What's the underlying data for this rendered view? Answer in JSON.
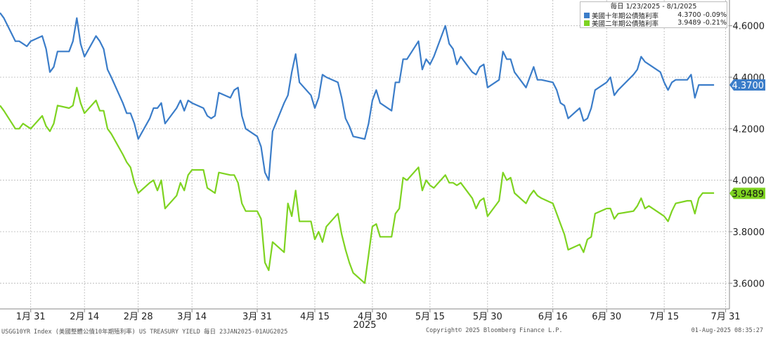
{
  "chart_data": {
    "type": "line",
    "title": "",
    "xlabel": "",
    "ylabel": "",
    "period_label": "毎日 1/23/2025 - 8/1/2025",
    "year_label": "2025",
    "ylim": [
      3.5,
      4.7
    ],
    "y_ticks": [
      3.6,
      3.8,
      4.0,
      4.2,
      4.4,
      4.6
    ],
    "y_tick_labels": [
      "3.6000",
      "3.8000",
      "4.0000",
      "4.2000",
      "4.4000",
      "4.6000"
    ],
    "xlim": [
      "2025-01-23",
      "2025-08-01"
    ],
    "x_ticks": [
      {
        "date": "2025-01-31",
        "label": "1月 31"
      },
      {
        "date": "2025-02-14",
        "label": "2月 14"
      },
      {
        "date": "2025-02-28",
        "label": "2月 28"
      },
      {
        "date": "2025-03-14",
        "label": "3月 14"
      },
      {
        "date": "2025-03-31",
        "label": "3月 31"
      },
      {
        "date": "2025-04-15",
        "label": "4月 15"
      },
      {
        "date": "2025-04-30",
        "label": "4月 30"
      },
      {
        "date": "2025-05-15",
        "label": "5月 15"
      },
      {
        "date": "2025-05-30",
        "label": "5月 30"
      },
      {
        "date": "2025-06-16",
        "label": "6月 16"
      },
      {
        "date": "2025-06-30",
        "label": "6月 30"
      },
      {
        "date": "2025-07-15",
        "label": "7月 15"
      },
      {
        "date": "2025-07-31",
        "label": "7月 31"
      }
    ],
    "grid": true,
    "legend": "top-right",
    "series": [
      {
        "name": "美國十年期公債殖利率",
        "color": "#3b7dc9",
        "last_value": "4.3700",
        "change": "-0.09%",
        "points": [
          [
            "2025-01-23",
            4.65
          ],
          [
            "2025-01-24",
            4.63
          ],
          [
            "2025-01-27",
            4.54
          ],
          [
            "2025-01-28",
            4.54
          ],
          [
            "2025-01-29",
            4.53
          ],
          [
            "2025-01-30",
            4.52
          ],
          [
            "2025-01-31",
            4.54
          ],
          [
            "2025-02-03",
            4.56
          ],
          [
            "2025-02-04",
            4.51
          ],
          [
            "2025-02-05",
            4.42
          ],
          [
            "2025-02-06",
            4.44
          ],
          [
            "2025-02-07",
            4.5
          ],
          [
            "2025-02-10",
            4.5
          ],
          [
            "2025-02-11",
            4.54
          ],
          [
            "2025-02-12",
            4.63
          ],
          [
            "2025-02-13",
            4.53
          ],
          [
            "2025-02-14",
            4.48
          ],
          [
            "2025-02-17",
            4.56
          ],
          [
            "2025-02-18",
            4.54
          ],
          [
            "2025-02-19",
            4.51
          ],
          [
            "2025-02-20",
            4.43
          ],
          [
            "2025-02-21",
            4.4
          ],
          [
            "2025-02-24",
            4.3
          ],
          [
            "2025-02-25",
            4.26
          ],
          [
            "2025-02-26",
            4.26
          ],
          [
            "2025-02-27",
            4.22
          ],
          [
            "2025-02-28",
            4.16
          ],
          [
            "2025-03-03",
            4.24
          ],
          [
            "2025-03-04",
            4.28
          ],
          [
            "2025-03-05",
            4.28
          ],
          [
            "2025-03-06",
            4.3
          ],
          [
            "2025-03-07",
            4.22
          ],
          [
            "2025-03-10",
            4.28
          ],
          [
            "2025-03-11",
            4.31
          ],
          [
            "2025-03-12",
            4.27
          ],
          [
            "2025-03-13",
            4.31
          ],
          [
            "2025-03-14",
            4.3
          ],
          [
            "2025-03-17",
            4.28
          ],
          [
            "2025-03-18",
            4.25
          ],
          [
            "2025-03-19",
            4.24
          ],
          [
            "2025-03-20",
            4.25
          ],
          [
            "2025-03-21",
            4.34
          ],
          [
            "2025-03-24",
            4.32
          ],
          [
            "2025-03-25",
            4.35
          ],
          [
            "2025-03-26",
            4.36
          ],
          [
            "2025-03-27",
            4.25
          ],
          [
            "2025-03-28",
            4.2
          ],
          [
            "2025-03-31",
            4.17
          ],
          [
            "2025-04-01",
            4.13
          ],
          [
            "2025-04-02",
            4.03
          ],
          [
            "2025-04-03",
            4.0
          ],
          [
            "2025-04-04",
            4.19
          ],
          [
            "2025-04-07",
            4.3
          ],
          [
            "2025-04-08",
            4.33
          ],
          [
            "2025-04-09",
            4.42
          ],
          [
            "2025-04-10",
            4.49
          ],
          [
            "2025-04-11",
            4.38
          ],
          [
            "2025-04-14",
            4.33
          ],
          [
            "2025-04-15",
            4.28
          ],
          [
            "2025-04-16",
            4.32
          ],
          [
            "2025-04-17",
            4.41
          ],
          [
            "2025-04-18",
            4.4
          ],
          [
            "2025-04-21",
            4.38
          ],
          [
            "2025-04-22",
            4.32
          ],
          [
            "2025-04-23",
            4.24
          ],
          [
            "2025-04-24",
            4.21
          ],
          [
            "2025-04-25",
            4.17
          ],
          [
            "2025-04-28",
            4.16
          ],
          [
            "2025-04-29",
            4.22
          ],
          [
            "2025-04-30",
            4.31
          ],
          [
            "2025-05-01",
            4.35
          ],
          [
            "2025-05-02",
            4.3
          ],
          [
            "2025-05-05",
            4.27
          ],
          [
            "2025-05-06",
            4.38
          ],
          [
            "2025-05-07",
            4.38
          ],
          [
            "2025-05-08",
            4.47
          ],
          [
            "2025-05-09",
            4.47
          ],
          [
            "2025-05-12",
            4.54
          ],
          [
            "2025-05-13",
            4.43
          ],
          [
            "2025-05-14",
            4.47
          ],
          [
            "2025-05-15",
            4.45
          ],
          [
            "2025-05-16",
            4.48
          ],
          [
            "2025-05-19",
            4.6
          ],
          [
            "2025-05-20",
            4.53
          ],
          [
            "2025-05-21",
            4.51
          ],
          [
            "2025-05-22",
            4.45
          ],
          [
            "2025-05-23",
            4.48
          ],
          [
            "2025-05-26",
            4.42
          ],
          [
            "2025-05-27",
            4.41
          ],
          [
            "2025-05-28",
            4.44
          ],
          [
            "2025-05-29",
            4.45
          ],
          [
            "2025-05-30",
            4.36
          ],
          [
            "2025-06-02",
            4.39
          ],
          [
            "2025-06-03",
            4.5
          ],
          [
            "2025-06-04",
            4.47
          ],
          [
            "2025-06-05",
            4.47
          ],
          [
            "2025-06-06",
            4.42
          ],
          [
            "2025-06-09",
            4.36
          ],
          [
            "2025-06-10",
            4.4
          ],
          [
            "2025-06-11",
            4.44
          ],
          [
            "2025-06-12",
            4.39
          ],
          [
            "2025-06-13",
            4.39
          ],
          [
            "2025-06-16",
            4.38
          ],
          [
            "2025-06-17",
            4.35
          ],
          [
            "2025-06-18",
            4.3
          ],
          [
            "2025-06-19",
            4.29
          ],
          [
            "2025-06-20",
            4.24
          ],
          [
            "2025-06-23",
            4.28
          ],
          [
            "2025-06-24",
            4.23
          ],
          [
            "2025-06-25",
            4.24
          ],
          [
            "2025-06-26",
            4.28
          ],
          [
            "2025-06-27",
            4.35
          ],
          [
            "2025-06-30",
            4.38
          ],
          [
            "2025-07-01",
            4.4
          ],
          [
            "2025-07-02",
            4.33
          ],
          [
            "2025-07-03",
            4.35
          ],
          [
            "2025-07-07",
            4.41
          ],
          [
            "2025-07-08",
            4.43
          ],
          [
            "2025-07-09",
            4.48
          ],
          [
            "2025-07-10",
            4.46
          ],
          [
            "2025-07-11",
            4.45
          ],
          [
            "2025-07-14",
            4.42
          ],
          [
            "2025-07-15",
            4.38
          ],
          [
            "2025-07-16",
            4.35
          ],
          [
            "2025-07-17",
            4.38
          ],
          [
            "2025-07-18",
            4.39
          ],
          [
            "2025-07-21",
            4.39
          ],
          [
            "2025-07-22",
            4.41
          ],
          [
            "2025-07-23",
            4.32
          ],
          [
            "2025-07-24",
            4.37
          ],
          [
            "2025-07-25",
            4.37
          ],
          [
            "2025-07-28",
            4.37
          ]
        ]
      },
      {
        "name": "美國二年期公債殖利率",
        "color": "#7ed321",
        "last_value": "3.9489",
        "change": "-0.21%",
        "points": [
          [
            "2025-01-23",
            4.29
          ],
          [
            "2025-01-24",
            4.27
          ],
          [
            "2025-01-27",
            4.2
          ],
          [
            "2025-01-28",
            4.2
          ],
          [
            "2025-01-29",
            4.22
          ],
          [
            "2025-01-30",
            4.21
          ],
          [
            "2025-01-31",
            4.2
          ],
          [
            "2025-02-03",
            4.25
          ],
          [
            "2025-02-04",
            4.21
          ],
          [
            "2025-02-05",
            4.19
          ],
          [
            "2025-02-06",
            4.22
          ],
          [
            "2025-02-07",
            4.29
          ],
          [
            "2025-02-10",
            4.28
          ],
          [
            "2025-02-11",
            4.29
          ],
          [
            "2025-02-12",
            4.36
          ],
          [
            "2025-02-13",
            4.3
          ],
          [
            "2025-02-14",
            4.26
          ],
          [
            "2025-02-17",
            4.31
          ],
          [
            "2025-02-18",
            4.27
          ],
          [
            "2025-02-19",
            4.27
          ],
          [
            "2025-02-20",
            4.2
          ],
          [
            "2025-02-21",
            4.18
          ],
          [
            "2025-02-24",
            4.1
          ],
          [
            "2025-02-25",
            4.07
          ],
          [
            "2025-02-26",
            4.05
          ],
          [
            "2025-02-27",
            3.99
          ],
          [
            "2025-02-28",
            3.95
          ],
          [
            "2025-03-03",
            3.99
          ],
          [
            "2025-03-04",
            4.0
          ],
          [
            "2025-03-05",
            3.96
          ],
          [
            "2025-03-06",
            4.0
          ],
          [
            "2025-03-07",
            3.89
          ],
          [
            "2025-03-10",
            3.94
          ],
          [
            "2025-03-11",
            3.99
          ],
          [
            "2025-03-12",
            3.96
          ],
          [
            "2025-03-13",
            4.02
          ],
          [
            "2025-03-14",
            4.04
          ],
          [
            "2025-03-17",
            4.04
          ],
          [
            "2025-03-18",
            3.97
          ],
          [
            "2025-03-19",
            3.96
          ],
          [
            "2025-03-20",
            3.95
          ],
          [
            "2025-03-21",
            4.03
          ],
          [
            "2025-03-24",
            4.02
          ],
          [
            "2025-03-25",
            4.02
          ],
          [
            "2025-03-26",
            3.99
          ],
          [
            "2025-03-27",
            3.91
          ],
          [
            "2025-03-28",
            3.88
          ],
          [
            "2025-03-31",
            3.88
          ],
          [
            "2025-04-01",
            3.85
          ],
          [
            "2025-04-02",
            3.68
          ],
          [
            "2025-04-03",
            3.65
          ],
          [
            "2025-04-04",
            3.76
          ],
          [
            "2025-04-07",
            3.72
          ],
          [
            "2025-04-08",
            3.91
          ],
          [
            "2025-04-09",
            3.86
          ],
          [
            "2025-04-10",
            3.96
          ],
          [
            "2025-04-11",
            3.84
          ],
          [
            "2025-04-14",
            3.84
          ],
          [
            "2025-04-15",
            3.77
          ],
          [
            "2025-04-16",
            3.8
          ],
          [
            "2025-04-17",
            3.76
          ],
          [
            "2025-04-18",
            3.82
          ],
          [
            "2025-04-21",
            3.87
          ],
          [
            "2025-04-22",
            3.79
          ],
          [
            "2025-04-23",
            3.73
          ],
          [
            "2025-04-24",
            3.68
          ],
          [
            "2025-04-25",
            3.64
          ],
          [
            "2025-04-28",
            3.6
          ],
          [
            "2025-04-29",
            3.71
          ],
          [
            "2025-04-30",
            3.82
          ],
          [
            "2025-05-01",
            3.83
          ],
          [
            "2025-05-02",
            3.78
          ],
          [
            "2025-05-05",
            3.78
          ],
          [
            "2025-05-06",
            3.87
          ],
          [
            "2025-05-07",
            3.89
          ],
          [
            "2025-05-08",
            4.01
          ],
          [
            "2025-05-09",
            4.0
          ],
          [
            "2025-05-12",
            4.05
          ],
          [
            "2025-05-13",
            3.96
          ],
          [
            "2025-05-14",
            4.0
          ],
          [
            "2025-05-15",
            3.98
          ],
          [
            "2025-05-16",
            3.97
          ],
          [
            "2025-05-19",
            4.02
          ],
          [
            "2025-05-20",
            3.99
          ],
          [
            "2025-05-21",
            3.99
          ],
          [
            "2025-05-22",
            3.98
          ],
          [
            "2025-05-23",
            3.99
          ],
          [
            "2025-05-26",
            3.93
          ],
          [
            "2025-05-27",
            3.89
          ],
          [
            "2025-05-28",
            3.92
          ],
          [
            "2025-05-29",
            3.93
          ],
          [
            "2025-05-30",
            3.86
          ],
          [
            "2025-06-02",
            3.92
          ],
          [
            "2025-06-03",
            4.03
          ],
          [
            "2025-06-04",
            4.0
          ],
          [
            "2025-06-05",
            4.01
          ],
          [
            "2025-06-06",
            3.95
          ],
          [
            "2025-06-09",
            3.91
          ],
          [
            "2025-06-10",
            3.94
          ],
          [
            "2025-06-11",
            3.96
          ],
          [
            "2025-06-12",
            3.94
          ],
          [
            "2025-06-13",
            3.93
          ],
          [
            "2025-06-16",
            3.91
          ],
          [
            "2025-06-17",
            3.87
          ],
          [
            "2025-06-18",
            3.83
          ],
          [
            "2025-06-19",
            3.79
          ],
          [
            "2025-06-20",
            3.73
          ],
          [
            "2025-06-23",
            3.75
          ],
          [
            "2025-06-24",
            3.72
          ],
          [
            "2025-06-25",
            3.77
          ],
          [
            "2025-06-26",
            3.78
          ],
          [
            "2025-06-27",
            3.87
          ],
          [
            "2025-06-30",
            3.89
          ],
          [
            "2025-07-01",
            3.89
          ],
          [
            "2025-07-02",
            3.85
          ],
          [
            "2025-07-03",
            3.87
          ],
          [
            "2025-07-07",
            3.88
          ],
          [
            "2025-07-08",
            3.9
          ],
          [
            "2025-07-09",
            3.93
          ],
          [
            "2025-07-10",
            3.89
          ],
          [
            "2025-07-11",
            3.9
          ],
          [
            "2025-07-14",
            3.87
          ],
          [
            "2025-07-15",
            3.86
          ],
          [
            "2025-07-16",
            3.84
          ],
          [
            "2025-07-17",
            3.88
          ],
          [
            "2025-07-18",
            3.91
          ],
          [
            "2025-07-21",
            3.92
          ],
          [
            "2025-07-22",
            3.92
          ],
          [
            "2025-07-23",
            3.87
          ],
          [
            "2025-07-24",
            3.93
          ],
          [
            "2025-07-25",
            3.95
          ],
          [
            "2025-07-28",
            3.95
          ]
        ]
      }
    ]
  },
  "footer": {
    "left": "USGG10YR Index (美國整體公債10年期殖利率) US TREASURY YIELD  毎日 23JAN2025-01AUG2025",
    "center": "Copyright© 2025 Bloomberg Finance L.P.",
    "right": "01-Aug-2025 08:35:27"
  }
}
